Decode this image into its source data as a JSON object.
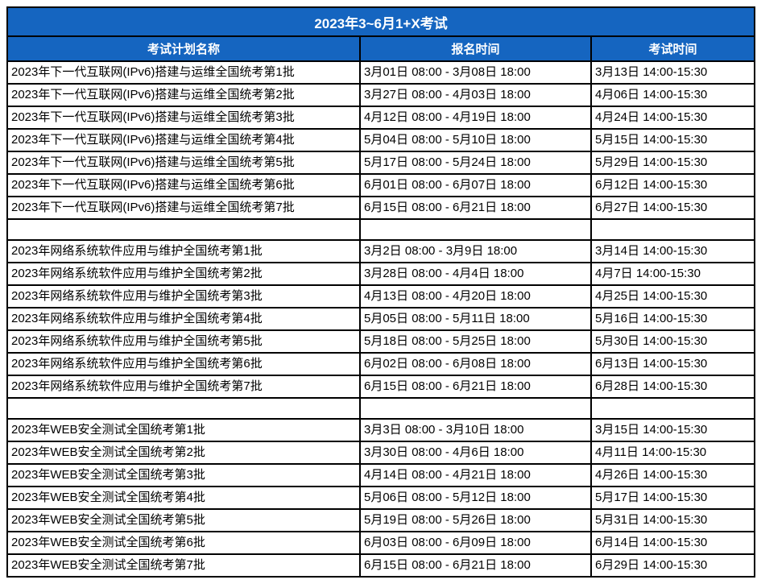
{
  "table": {
    "title": "2023年3~6月1+X考试",
    "columns": [
      "考试计划名称",
      "报名时间",
      "考试时间"
    ],
    "colors": {
      "header_bg": "#1565c0",
      "header_text": "#ffffff",
      "border": "#000000",
      "row_bg": "#ffffff",
      "row_text": "#000000"
    },
    "sections": [
      {
        "rows": [
          [
            "2023年下一代互联网(IPv6)搭建与运维全国统考第1批",
            "3月01日 08:00 - 3月08日 18:00",
            "3月13日 14:00-15:30"
          ],
          [
            "2023年下一代互联网(IPv6)搭建与运维全国统考第2批",
            "3月27日 08:00 - 4月03日 18:00",
            "4月06日 14:00-15:30"
          ],
          [
            "2023年下一代互联网(IPv6)搭建与运维全国统考第3批",
            "4月12日 08:00 - 4月19日 18:00",
            "4月24日 14:00-15:30"
          ],
          [
            "2023年下一代互联网(IPv6)搭建与运维全国统考第4批",
            "5月04日 08:00 - 5月10日 18:00",
            "5月15日 14:00-15:30"
          ],
          [
            "2023年下一代互联网(IPv6)搭建与运维全国统考第5批",
            "5月17日 08:00 - 5月24日 18:00",
            "5月29日 14:00-15:30"
          ],
          [
            "2023年下一代互联网(IPv6)搭建与运维全国统考第6批",
            "6月01日 08:00 - 6月07日 18:00",
            "6月12日 14:00-15:30"
          ],
          [
            "2023年下一代互联网(IPv6)搭建与运维全国统考第7批",
            "6月15日 08:00 - 6月21日 18:00",
            "6月27日 14:00-15:30"
          ]
        ]
      },
      {
        "rows": [
          [
            "2023年网络系统软件应用与维护全国统考第1批",
            "3月2日 08:00 - 3月9日 18:00",
            "3月14日 14:00-15:30"
          ],
          [
            "2023年网络系统软件应用与维护全国统考第2批",
            "3月28日 08:00 - 4月4日 18:00",
            "4月7日 14:00-15:30"
          ],
          [
            "2023年网络系统软件应用与维护全国统考第3批",
            "4月13日 08:00 - 4月20日 18:00",
            "4月25日 14:00-15:30"
          ],
          [
            "2023年网络系统软件应用与维护全国统考第4批",
            "5月05日 08:00 - 5月11日 18:00",
            "5月16日 14:00-15:30"
          ],
          [
            "2023年网络系统软件应用与维护全国统考第5批",
            "5月18日 08:00 - 5月25日 18:00",
            "5月30日 14:00-15:30"
          ],
          [
            "2023年网络系统软件应用与维护全国统考第6批",
            "6月02日 08:00 - 6月08日 18:00",
            "6月13日 14:00-15:30"
          ],
          [
            "2023年网络系统软件应用与维护全国统考第7批",
            "6月15日 08:00 - 6月21日 18:00",
            "6月28日 14:00-15:30"
          ]
        ]
      },
      {
        "rows": [
          [
            "2023年WEB安全测试全国统考第1批",
            "3月3日 08:00 - 3月10日 18:00",
            "3月15日 14:00-15:30"
          ],
          [
            "2023年WEB安全测试全国统考第2批",
            "3月30日 08:00 - 4月6日 18:00",
            "4月11日 14:00-15:30"
          ],
          [
            "2023年WEB安全测试全国统考第3批",
            "4月14日 08:00 - 4月21日 18:00",
            "4月26日 14:00-15:30"
          ],
          [
            "2023年WEB安全测试全国统考第4批",
            "5月06日 08:00 - 5月12日 18:00",
            "5月17日 14:00-15:30"
          ],
          [
            "2023年WEB安全测试全国统考第5批",
            "5月19日 08:00 - 5月26日 18:00",
            "5月31日 14:00-15:30"
          ],
          [
            "2023年WEB安全测试全国统考第6批",
            "6月03日 08:00 - 6月09日 18:00",
            "6月14日 14:00-15:30"
          ],
          [
            "2023年WEB安全测试全国统考第7批",
            "6月15日 08:00 - 6月21日 18:00",
            "6月29日 14:00-15:30"
          ]
        ]
      }
    ]
  }
}
